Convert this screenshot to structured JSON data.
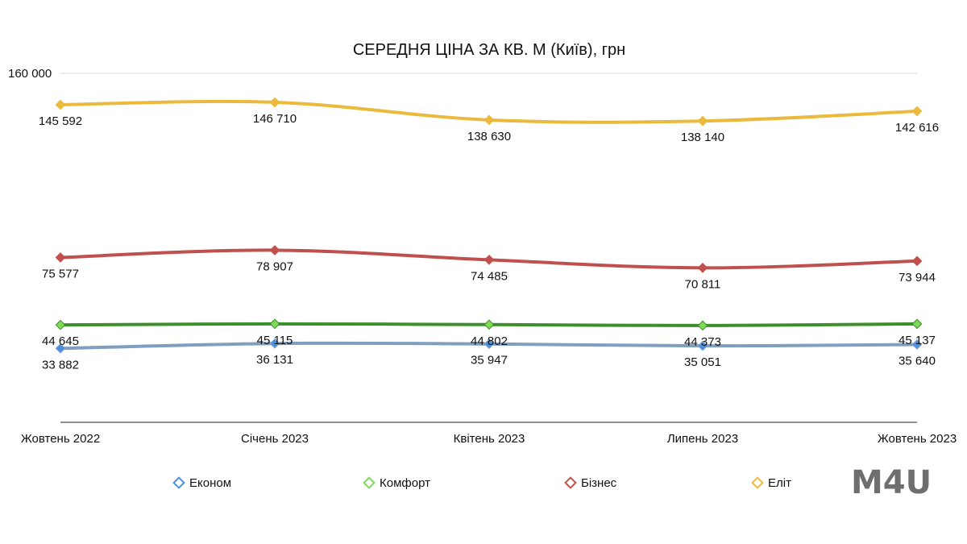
{
  "chart_data": {
    "type": "line",
    "title": "СЕРЕДНЯ ЦІНА ЗА КВ. М (Київ), грн",
    "xlabel": "",
    "ylabel": "",
    "categories": [
      "Жовтень 2022",
      "Січень 2023",
      "Квітень 2023",
      "Липень 2023",
      "Жовтень 2023"
    ],
    "ylim": [
      0,
      160000
    ],
    "yticks": [
      {
        "value": 160000,
        "label": "160 000"
      }
    ],
    "grid": "top line only",
    "legend_position": "bottom",
    "series": [
      {
        "name": "Економ",
        "color": "#7f9fc0",
        "marker_color": "#4a90e2",
        "values": [
          33882,
          36131,
          35947,
          35051,
          35640
        ],
        "labels": [
          "33 882",
          "36 131",
          "35 947",
          "35 051",
          "35 640"
        ]
      },
      {
        "name": "Комфорт",
        "color": "#3c8f2a",
        "marker_color": "#7ed957",
        "values": [
          44645,
          45115,
          44802,
          44373,
          45137
        ],
        "labels": [
          "44 645",
          "45 115",
          "44 802",
          "44 373",
          "45 137"
        ]
      },
      {
        "name": "Бізнес",
        "color": "#c0504d",
        "marker_color": "#c0504d",
        "values": [
          75577,
          78907,
          74485,
          70811,
          73944
        ],
        "labels": [
          "75 577",
          "78 907",
          "74 485",
          "70 811",
          "73 944"
        ]
      },
      {
        "name": "Еліт",
        "color": "#ebb93b",
        "marker_color": "#ebb93b",
        "values": [
          145592,
          146710,
          138630,
          138140,
          142616
        ],
        "labels": [
          "145 592",
          "146 710",
          "138 630",
          "138 140",
          "142 616"
        ]
      }
    ]
  },
  "logo_text": "M4U"
}
